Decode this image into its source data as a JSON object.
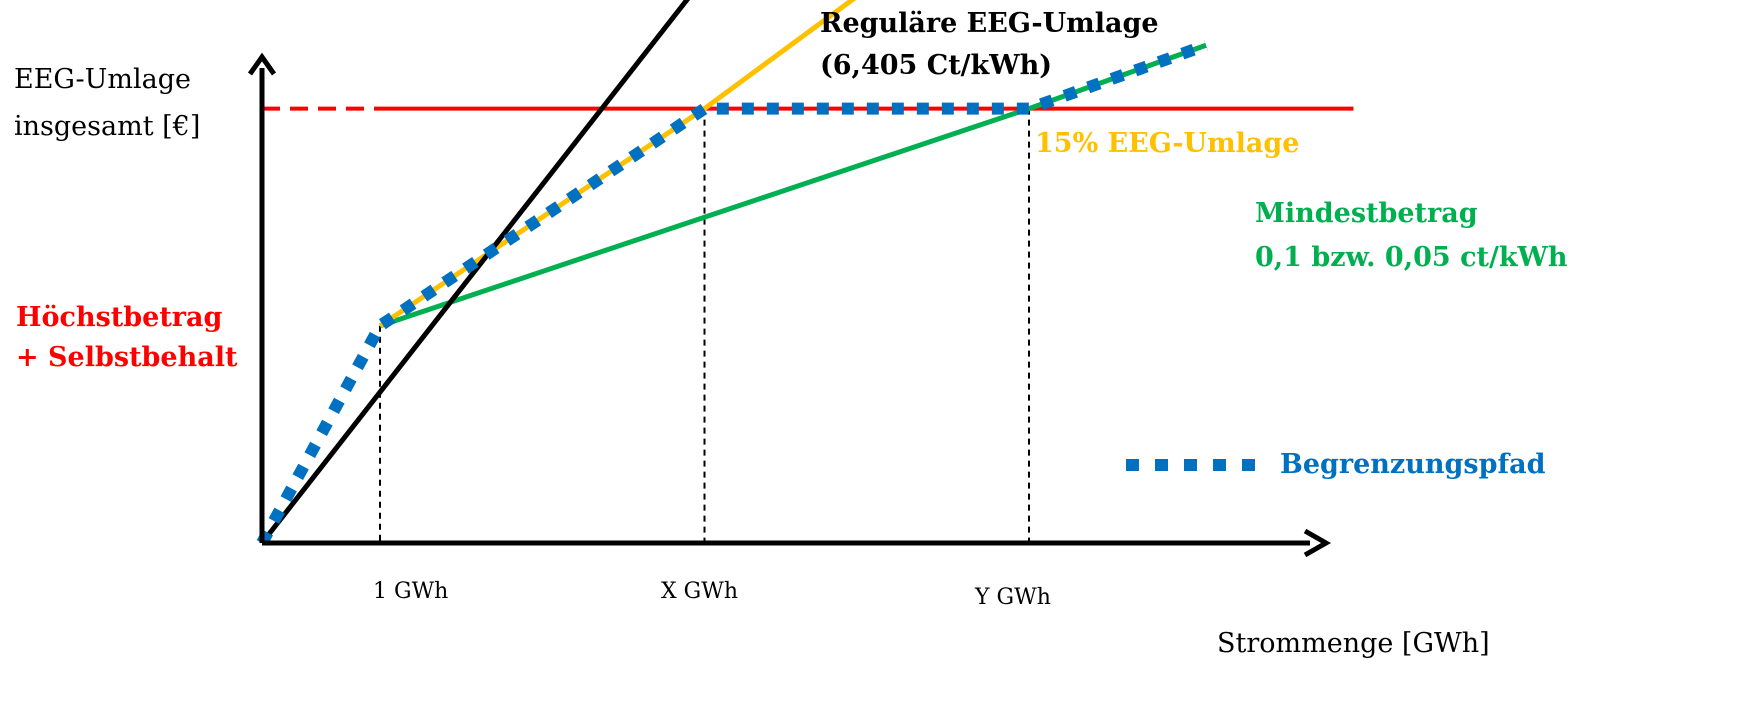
{
  "colors": {
    "axis": "#000000",
    "regular": "#000000",
    "fifteen": "#FFC000",
    "mindest": "#00B050",
    "hoechst": "#FF0000",
    "pfad": "#0070C0"
  },
  "chart_data": {
    "type": "line",
    "title": "",
    "ylabel_lines": [
      "EEG-Umlage",
      "insgesamt [€]"
    ],
    "xlabel": "Strommenge [GWh]",
    "x_ticks": [
      "1 GWh",
      "X GWh",
      "Y GWh"
    ],
    "series": [
      {
        "key": "regular",
        "label_lines": [
          "Reguläre EEG-Umlage",
          "(6,405 Ct/kWh)"
        ],
        "style": "solid",
        "points": [
          [
            0,
            0
          ],
          [
            6,
            100
          ]
        ]
      },
      {
        "key": "fifteen",
        "label_lines": [
          "15% EEG-Umlage"
        ],
        "style": "solid",
        "points": [
          [
            1,
            24
          ],
          [
            3.75,
            48
          ],
          [
            6.25,
            72
          ]
        ]
      },
      {
        "key": "mindest",
        "label_lines": [
          "Mindestbetrag",
          "0,1 bzw. 0,05 ct/kWh"
        ],
        "style": "solid",
        "points": [
          [
            1,
            24
          ],
          [
            6.5,
            48
          ],
          [
            8,
            55
          ]
        ]
      },
      {
        "key": "hoechst",
        "label_lines": [
          "Höchstbetrag",
          "+ Selbstbehalt"
        ],
        "style": "dashed-then-solid",
        "points": [
          [
            0,
            48
          ],
          [
            9.25,
            48
          ]
        ],
        "dash_until": 1
      },
      {
        "key": "pfad",
        "label_lines": [
          "Begrenzungspfad"
        ],
        "style": "dotted",
        "points": [
          [
            0,
            0
          ],
          [
            1,
            24
          ],
          [
            3.75,
            48
          ],
          [
            6.5,
            48
          ],
          [
            8,
            55
          ]
        ]
      }
    ],
    "dropline_x": [
      1,
      3.75,
      6.5
    ],
    "legend_position": "right"
  }
}
